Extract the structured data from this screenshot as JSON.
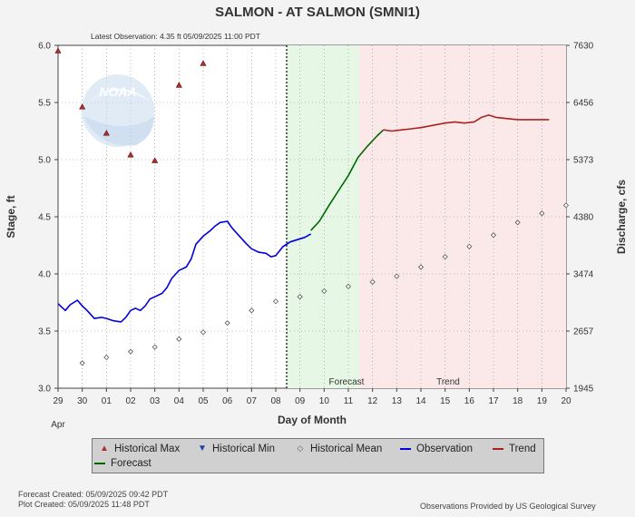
{
  "chart_data": {
    "type": "line",
    "title": "SALMON - AT SALMON  (SMNI1)",
    "subtitle": "Latest Observation: 4.35 ft 05/09/2025 11:00 PDT",
    "xlabel": "Day of Month",
    "ylabel": "Stage, ft",
    "y2label": "Discharge, cfs",
    "month_label": "Apr",
    "x_ticks": [
      "29",
      "30",
      "01",
      "02",
      "03",
      "04",
      "05",
      "06",
      "07",
      "08",
      "09",
      "10",
      "11",
      "12",
      "13",
      "14",
      "15",
      "16",
      "17",
      "18",
      "19",
      "20"
    ],
    "ylim": [
      3.0,
      6.0
    ],
    "y_ticks": [
      "3.0",
      "3.5",
      "4.0",
      "4.5",
      "5.0",
      "5.5",
      "6.0"
    ],
    "y2_ticks": [
      "1945",
      "2657",
      "3474",
      "4380",
      "5373",
      "6456",
      "7630"
    ],
    "region_labels": {
      "forecast": "Forecast",
      "trend": "Trend"
    },
    "regions": {
      "observation_end": 9.45,
      "forecast_end": 12.45,
      "trend_end": 21.0
    },
    "series": [
      {
        "name": "Historical Max",
        "marker": "triangle-up",
        "color": "#b03030",
        "points": [
          [
            0,
            5.95
          ],
          [
            1,
            5.46
          ],
          [
            2,
            5.23
          ],
          [
            3,
            5.04
          ],
          [
            4,
            4.99
          ],
          [
            5,
            5.65
          ],
          [
            6,
            5.84
          ]
        ]
      },
      {
        "name": "Historical Mean",
        "marker": "diamond",
        "color": "#555555",
        "points": [
          [
            1,
            3.22
          ],
          [
            2,
            3.27
          ],
          [
            3,
            3.32
          ],
          [
            4,
            3.36
          ],
          [
            5,
            3.43
          ],
          [
            6,
            3.49
          ],
          [
            7,
            3.57
          ],
          [
            8,
            3.68
          ],
          [
            9,
            3.76
          ],
          [
            10,
            3.8
          ],
          [
            11,
            3.85
          ],
          [
            12,
            3.89
          ],
          [
            13,
            3.93
          ],
          [
            14,
            3.98
          ],
          [
            15,
            4.06
          ],
          [
            16,
            4.15
          ],
          [
            17,
            4.24
          ],
          [
            18,
            4.34
          ],
          [
            19,
            4.45
          ],
          [
            20,
            4.53
          ],
          [
            21,
            4.6
          ]
        ]
      },
      {
        "name": "Observation",
        "color": "#0000dd",
        "points": [
          [
            0,
            3.74
          ],
          [
            0.3,
            3.68
          ],
          [
            0.5,
            3.73
          ],
          [
            0.8,
            3.77
          ],
          [
            1.0,
            3.72
          ],
          [
            1.2,
            3.68
          ],
          [
            1.5,
            3.61
          ],
          [
            1.8,
            3.62
          ],
          [
            2.0,
            3.61
          ],
          [
            2.3,
            3.59
          ],
          [
            2.6,
            3.58
          ],
          [
            2.8,
            3.62
          ],
          [
            3.0,
            3.68
          ],
          [
            3.2,
            3.7
          ],
          [
            3.4,
            3.68
          ],
          [
            3.6,
            3.72
          ],
          [
            3.8,
            3.78
          ],
          [
            4.0,
            3.8
          ],
          [
            4.3,
            3.83
          ],
          [
            4.5,
            3.88
          ],
          [
            4.7,
            3.96
          ],
          [
            5.0,
            4.03
          ],
          [
            5.3,
            4.06
          ],
          [
            5.5,
            4.13
          ],
          [
            5.7,
            4.26
          ],
          [
            6.0,
            4.33
          ],
          [
            6.3,
            4.38
          ],
          [
            6.5,
            4.42
          ],
          [
            6.7,
            4.45
          ],
          [
            7.0,
            4.46
          ],
          [
            7.2,
            4.4
          ],
          [
            7.5,
            4.33
          ],
          [
            7.8,
            4.26
          ],
          [
            8.0,
            4.22
          ],
          [
            8.3,
            4.19
          ],
          [
            8.6,
            4.18
          ],
          [
            8.8,
            4.15
          ],
          [
            9.0,
            4.16
          ],
          [
            9.3,
            4.24
          ],
          [
            9.6,
            4.28
          ],
          [
            9.9,
            4.3
          ],
          [
            10.2,
            4.32
          ],
          [
            10.45,
            4.35
          ]
        ]
      },
      {
        "name": "Forecast",
        "color": "#006600",
        "points": [
          [
            10.45,
            4.38
          ],
          [
            10.8,
            4.46
          ],
          [
            11.2,
            4.6
          ],
          [
            11.6,
            4.73
          ],
          [
            12.0,
            4.86
          ],
          [
            12.4,
            5.02
          ],
          [
            12.8,
            5.12
          ],
          [
            13.2,
            5.21
          ],
          [
            13.45,
            5.26
          ]
        ]
      },
      {
        "name": "Trend",
        "color": "#aa2222",
        "points": [
          [
            13.45,
            5.26
          ],
          [
            13.8,
            5.25
          ],
          [
            14.2,
            5.26
          ],
          [
            14.6,
            5.27
          ],
          [
            15.0,
            5.28
          ],
          [
            15.5,
            5.3
          ],
          [
            16.0,
            5.32
          ],
          [
            16.4,
            5.33
          ],
          [
            16.8,
            5.32
          ],
          [
            17.2,
            5.33
          ],
          [
            17.5,
            5.37
          ],
          [
            17.8,
            5.39
          ],
          [
            18.1,
            5.37
          ],
          [
            18.5,
            5.36
          ],
          [
            19.0,
            5.35
          ],
          [
            19.5,
            5.35
          ],
          [
            20.0,
            5.35
          ],
          [
            20.3,
            5.35
          ]
        ]
      }
    ],
    "legend_placement": "bottom"
  },
  "legend": {
    "historical_max": "Historical Max",
    "historical_min": "Historical Min",
    "historical_mean": "Historical Mean",
    "observation": "Observation",
    "trend": "Trend",
    "forecast": "Forecast"
  },
  "watermark_text": "NOAA",
  "footer": {
    "forecast_created": "Forecast Created: 05/09/2025 09:42 PDT",
    "plot_created": "Plot Created: 05/09/2025 11:48 PDT",
    "provider": "Observations Provided by US Geological Survey"
  },
  "colors": {
    "observation": "#0000dd",
    "forecast": "#006600",
    "trend": "#aa2222",
    "forecast_bg": "#e6f7e6",
    "trend_bg": "#fbe9e9"
  }
}
